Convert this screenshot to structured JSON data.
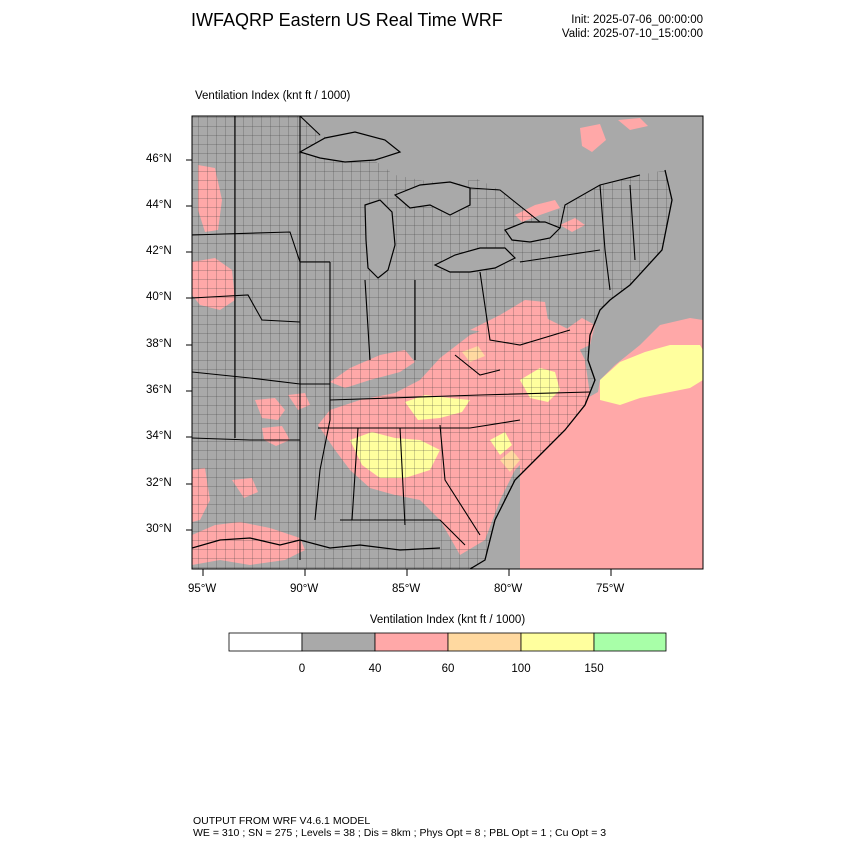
{
  "header": {
    "title": "IWFAQRP Eastern US Real Time WRF",
    "init": "Init: 2025-07-06_00:00:00",
    "valid": "Valid: 2025-07-10_15:00:00"
  },
  "map": {
    "field_label": "Ventilation Index   (knt ft / 1000)",
    "lat_labels": [
      "46°N",
      "44°N",
      "42°N",
      "40°N",
      "38°N",
      "36°N",
      "34°N",
      "32°N",
      "30°N"
    ],
    "lon_labels": [
      "95°W",
      "90°W",
      "85°W",
      "80°W",
      "75°W"
    ],
    "colors": {
      "background": "#a9a9a9",
      "class_40_60": "#ffa8a8",
      "class_60_100": "#ffd9a0",
      "class_100_150": "#ffff9e",
      "boundary": "#000000"
    }
  },
  "legend": {
    "title": "Ventilation Index  (knt ft / 1000)",
    "boxes": [
      {
        "color": "#ffffff"
      },
      {
        "color": "#a9a9a9"
      },
      {
        "color": "#ffa8a8"
      },
      {
        "color": "#ffd9a0"
      },
      {
        "color": "#ffff9e"
      },
      {
        "color": "#a8ffa8"
      }
    ],
    "labels": [
      "0",
      "40",
      "60",
      "100",
      "150"
    ]
  },
  "footer": {
    "line1": "OUTPUT FROM WRF V4.6.1 MODEL",
    "line2": "WE = 310 ; SN = 275 ; Levels = 38 ; Dis = 8km ; Phys Opt = 8 ; PBL Opt = 1 ; Cu Opt = 3"
  }
}
